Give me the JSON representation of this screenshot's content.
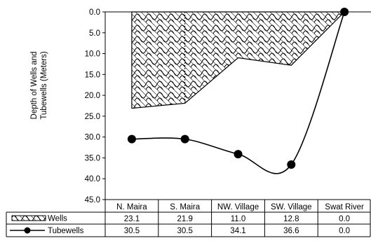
{
  "chart_data": {
    "type": "area",
    "ylabel": "Depth of Wells and Tubewells (Meters)",
    "y_reversed": true,
    "ylim": [
      0,
      45
    ],
    "y_ticks": [
      "0.0",
      "5.0",
      "10.0",
      "15.0",
      "20.0",
      "25.0",
      "30.0",
      "35.0",
      "40.0",
      "45.0"
    ],
    "grid": false,
    "categories": [
      "N. Maira",
      "S. Maira",
      "NW. Village",
      "SW. Village",
      "Swat River"
    ],
    "series": [
      {
        "name": "Wells",
        "style": "hatched-area",
        "values": [
          23.1,
          21.9,
          11.0,
          12.8,
          0.0
        ],
        "value_labels": [
          "23.1",
          "21.9",
          "11.0",
          "12.8",
          "0.0"
        ]
      },
      {
        "name": "Tubewells",
        "style": "smoothed-line-markers",
        "values": [
          30.5,
          30.5,
          34.1,
          36.6,
          0.0
        ],
        "value_labels": [
          "30.5",
          "30.5",
          "34.1",
          "36.6",
          "0.0"
        ]
      }
    ],
    "colors": {
      "line": "#000000",
      "background": "#ffffff"
    }
  }
}
